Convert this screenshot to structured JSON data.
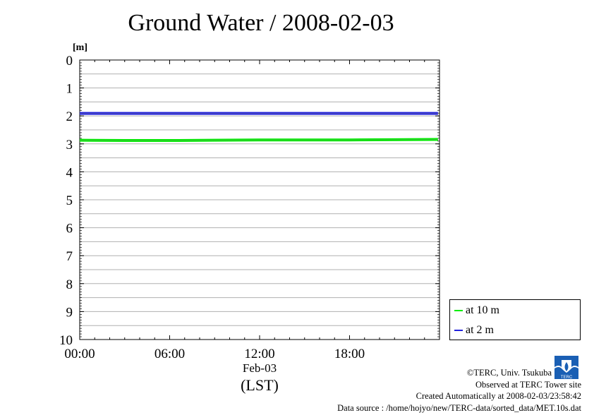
{
  "title": "Ground Water / 2008-02-03",
  "chart_data": {
    "type": "line",
    "ylabel": "[m]",
    "ylim": [
      0,
      10
    ],
    "y_inverted": true,
    "y_ticks": [
      "0",
      "1",
      "2",
      "3",
      "4",
      "5",
      "6",
      "7",
      "8",
      "9",
      "10"
    ],
    "x_ticks": [
      "00:00",
      "06:00",
      "12:00",
      "18:00"
    ],
    "x_date_label": "Feb-03",
    "x_unit_label": "(LST)",
    "grid": true,
    "legend_position": "bottom-right outside",
    "series": [
      {
        "name": "at 10 m",
        "color": "#00ee00",
        "x_hours": [
          0,
          3,
          6,
          9,
          12,
          15,
          18,
          21,
          23.9
        ],
        "values": [
          2.87,
          2.88,
          2.88,
          2.87,
          2.86,
          2.86,
          2.86,
          2.85,
          2.84
        ]
      },
      {
        "name": "at 2 m",
        "color": "#2222dd",
        "x_hours": [
          0,
          3,
          6,
          9,
          12,
          15,
          18,
          21,
          23.9
        ],
        "values": [
          1.91,
          1.91,
          1.91,
          1.91,
          1.91,
          1.91,
          1.91,
          1.91,
          1.91
        ]
      }
    ]
  },
  "credits": {
    "line1": "©TERC, Univ. Tsukuba",
    "line2": "Observed at TERC Tower site",
    "line3": "Created Automatically at 2008-02-03/23:58:42",
    "line4": "Data source : /home/hojyo/new/TERC-data/sorted_data/MET.10s.dat"
  },
  "logo_text": "TERC"
}
